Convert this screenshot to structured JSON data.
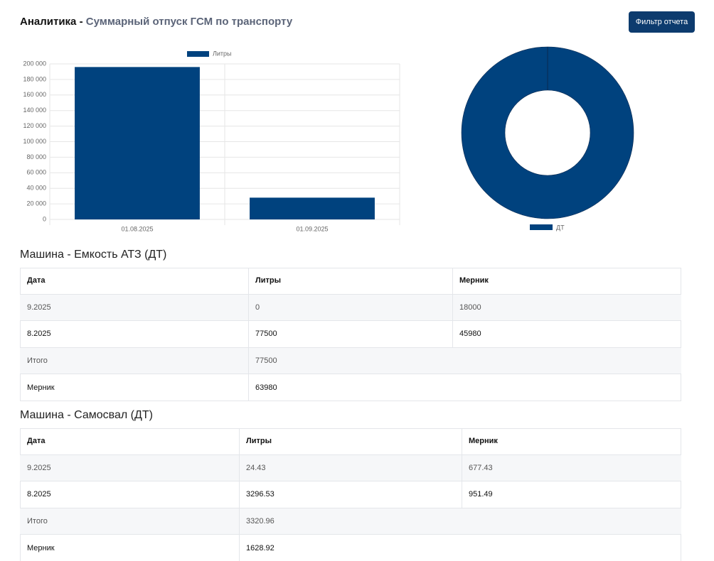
{
  "header": {
    "title": "Аналитика -",
    "subtitle": "Суммарный отпуск ГСМ по транспорту",
    "button": "Фильтр отчета"
  },
  "chart_data": [
    {
      "type": "bar",
      "categories": [
        "01.08.2025",
        "01.09.2025"
      ],
      "series": [
        {
          "name": "Литры",
          "color": "#00427e",
          "values": [
            196000,
            28000
          ]
        }
      ],
      "ylim": [
        0,
        200000
      ],
      "yticks": [
        0,
        {
          "value": 20000,
          "label": "20 000"
        },
        {
          "value": 40000,
          "label": "40 000"
        },
        {
          "value": 60000,
          "label": "60 000"
        },
        {
          "value": 80000,
          "label": "80 000"
        },
        {
          "value": 100000,
          "label": "100 000"
        },
        {
          "value": 120000,
          "label": "120 000"
        },
        {
          "value": 140000,
          "label": "140 000"
        },
        {
          "value": 160000,
          "label": "160 000"
        },
        {
          "value": 180000,
          "label": "180 000"
        },
        {
          "value": 200000,
          "label": "200 000"
        }
      ],
      "grid": true,
      "legend": "top"
    },
    {
      "type": "pie",
      "categories": [
        "ДТ"
      ],
      "values": [
        100
      ],
      "colors": [
        "#00427e"
      ],
      "legend": "bottom"
    }
  ],
  "tables": [
    {
      "title": "Машина - Емкость АТЗ (ДТ)",
      "columns": [
        "Дата",
        "Литры",
        "Мерник"
      ],
      "rows": [
        [
          "9.2025",
          "0",
          "18000"
        ],
        [
          "8.2025",
          "77500",
          "45980"
        ]
      ],
      "totals": [
        [
          "Итого",
          "77500"
        ],
        [
          "Мерник",
          "63980"
        ]
      ]
    },
    {
      "title": "Машина - Самосвал (ДТ)",
      "columns": [
        "Дата",
        "Литры",
        "Мерник"
      ],
      "rows": [
        [
          "9.2025",
          "24.43",
          "677.43"
        ],
        [
          "8.2025",
          "3296.53",
          "951.49"
        ]
      ],
      "totals": [
        [
          "Итого",
          "3320.96"
        ],
        [
          "Мерник",
          "1628.92"
        ]
      ]
    }
  ]
}
